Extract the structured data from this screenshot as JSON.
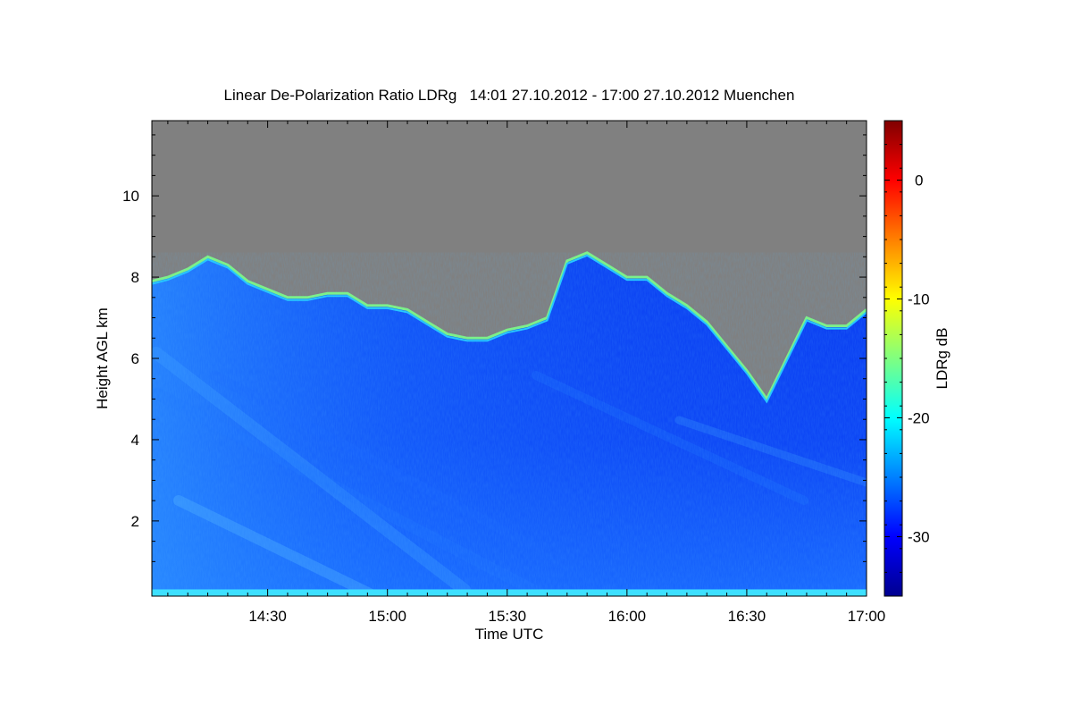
{
  "chart_data": {
    "type": "heatmap",
    "title": "Linear De-Polarization Ratio LDRg   14:01 27.10.2012 - 17:00 27.10.2012 Muenchen",
    "xlabel": "Time UTC",
    "ylabel": "Height AGL km",
    "x_ticks": [
      "14:30",
      "15:00",
      "15:30",
      "16:00",
      "16:30",
      "17:00"
    ],
    "x_tick_minutes": [
      870,
      900,
      930,
      960,
      990,
      1020
    ],
    "xlim_minutes": [
      841,
      1020
    ],
    "y_ticks": [
      2,
      4,
      6,
      8,
      10
    ],
    "ylim": [
      0.15,
      11.85
    ],
    "colorbar": {
      "label": "LDRg dB",
      "ticks": [
        0,
        -10,
        -20,
        -30
      ],
      "range": [
        -35,
        5
      ],
      "colormap": [
        "#00008f",
        "#0000ff",
        "#0080ff",
        "#00ffff",
        "#80ff80",
        "#ffff00",
        "#ff8000",
        "#ff0000",
        "#800000"
      ]
    },
    "no_signal_color": "#808080",
    "cloud_top_profile": {
      "time_minutes": [
        841,
        845,
        850,
        855,
        860,
        865,
        870,
        875,
        880,
        885,
        890,
        895,
        900,
        905,
        910,
        915,
        920,
        925,
        930,
        935,
        940,
        945,
        950,
        955,
        960,
        965,
        970,
        975,
        980,
        985,
        990,
        995,
        1000,
        1005,
        1010,
        1015,
        1020
      ],
      "top_km": [
        7.9,
        8.0,
        8.2,
        8.5,
        8.3,
        7.9,
        7.7,
        7.5,
        7.5,
        7.6,
        7.6,
        7.3,
        7.3,
        7.2,
        6.9,
        6.6,
        6.5,
        6.5,
        6.7,
        6.8,
        7.0,
        8.4,
        8.6,
        8.3,
        8.0,
        8.0,
        7.6,
        7.3,
        6.9,
        6.3,
        5.7,
        5.0,
        6.0,
        7.0,
        6.8,
        6.8,
        7.2
      ]
    },
    "base_layer_km": 0.25
  }
}
